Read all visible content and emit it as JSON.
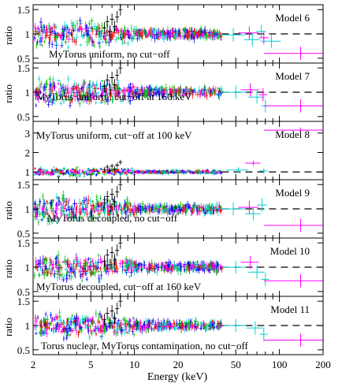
{
  "chart_data": {
    "type": "scatter",
    "xlabel": "Energy (keV)",
    "ylabel": "ratio",
    "x_scale": "log",
    "xlim": [
      2,
      200
    ],
    "x_ticks": [
      2,
      5,
      10,
      20,
      50,
      100,
      200
    ],
    "reference_line": 1,
    "series_colors": [
      "#000000",
      "#ff0000",
      "#00c000",
      "#0000ff",
      "#00d0d0",
      "#ff00ff"
    ],
    "panels": [
      {
        "model": "Model 6",
        "annotation": "MyTorus uniform, no cut−off",
        "ylim": [
          0.4,
          1.6
        ],
        "y_ticks": [
          0.5,
          1,
          1.5
        ],
        "y_tick_labels": [
          "0.5",
          "1",
          "1.5"
        ],
        "show_ylabel": true,
        "high_bins": [
          {
            "x": 48,
            "xe": 10,
            "y": 0.98,
            "c": 4
          },
          {
            "x": 65,
            "xe": 8,
            "y": 0.88,
            "c": 4
          },
          {
            "x": 75,
            "xe": 6,
            "y": 1.05,
            "c": 4
          },
          {
            "x": 88,
            "xe": 14,
            "y": 0.85,
            "c": 4
          },
          {
            "x": 62,
            "xe": 10,
            "y": 1.02,
            "c": 5
          },
          {
            "x": 78,
            "xe": 6,
            "y": 0.92,
            "c": 5
          },
          {
            "x": 140,
            "xe": 62,
            "y": 0.6,
            "c": 5
          }
        ]
      },
      {
        "model": "Model 7",
        "annotation": "MyTorus uniform, cut−off at 160 keV",
        "ylim": [
          0.4,
          1.6
        ],
        "y_ticks": [
          0.5,
          1,
          1.5
        ],
        "y_tick_labels": [
          "0.5",
          "1",
          "1.5"
        ],
        "show_ylabel": true,
        "high_bins": [
          {
            "x": 50,
            "xe": 9,
            "y": 1.0,
            "c": 4
          },
          {
            "x": 70,
            "xe": 9,
            "y": 0.9,
            "c": 4
          },
          {
            "x": 80,
            "xe": 5,
            "y": 0.72,
            "c": 4
          },
          {
            "x": 63,
            "xe": 9,
            "y": 1.05,
            "c": 5
          },
          {
            "x": 77,
            "xe": 5,
            "y": 0.95,
            "c": 5
          },
          {
            "x": 140,
            "xe": 62,
            "y": 0.72,
            "c": 5
          }
        ]
      },
      {
        "model": "Model 8",
        "annotation": "MyTorus uniform, cut−off at 100 keV",
        "ylim": [
          0.6,
          3.6
        ],
        "y_ticks": [
          1,
          2,
          3
        ],
        "y_tick_labels": [
          "1",
          "2",
          "3"
        ],
        "show_ylabel": false,
        "high_bins": [
          {
            "x": 52,
            "xe": 9,
            "y": 1.1,
            "c": 4
          },
          {
            "x": 66,
            "xe": 8,
            "y": 1.45,
            "c": 5
          },
          {
            "x": 78,
            "xe": 5,
            "y": 1.05,
            "c": 4
          },
          {
            "x": 140,
            "xe": 62,
            "y": 3.15,
            "c": 5
          }
        ]
      },
      {
        "model": "Model 9",
        "annotation": "MyTorus decoupled,  no cut−off",
        "ylim": [
          0.4,
          1.6
        ],
        "y_ticks": [
          0.5,
          1,
          1.5
        ],
        "y_tick_labels": [
          "0.5",
          "1",
          "1.5"
        ],
        "show_ylabel": true,
        "high_bins": [
          {
            "x": 48,
            "xe": 10,
            "y": 1.0,
            "c": 4
          },
          {
            "x": 66,
            "xe": 8,
            "y": 0.9,
            "c": 4
          },
          {
            "x": 76,
            "xe": 6,
            "y": 1.08,
            "c": 4
          },
          {
            "x": 62,
            "xe": 10,
            "y": 1.03,
            "c": 5
          },
          {
            "x": 140,
            "xe": 62,
            "y": 0.66,
            "c": 5
          }
        ]
      },
      {
        "model": "Model 10",
        "annotation": "MyTorus decoupled, cut−off at 160 keV",
        "ylim": [
          0.4,
          1.6
        ],
        "y_ticks": [
          0.5,
          1,
          1.5
        ],
        "y_tick_labels": [
          "0.5",
          "1",
          "1.5"
        ],
        "show_ylabel": true,
        "high_bins": [
          {
            "x": 50,
            "xe": 9,
            "y": 1.0,
            "c": 4
          },
          {
            "x": 70,
            "xe": 9,
            "y": 0.9,
            "c": 4
          },
          {
            "x": 80,
            "xe": 5,
            "y": 0.75,
            "c": 4
          },
          {
            "x": 63,
            "xe": 9,
            "y": 1.1,
            "c": 5
          },
          {
            "x": 140,
            "xe": 62,
            "y": 0.72,
            "c": 5
          }
        ]
      },
      {
        "model": "Model 11",
        "annotation": "Torus nuclear, MyTorus contamination, no cut−off",
        "ylim": [
          0.4,
          1.6
        ],
        "y_ticks": [
          0.5,
          1,
          1.5
        ],
        "y_tick_labels": [
          "0.5",
          "1",
          "1.5"
        ],
        "show_ylabel": true,
        "high_bins": [
          {
            "x": 50,
            "xe": 9,
            "y": 1.0,
            "c": 4
          },
          {
            "x": 68,
            "xe": 9,
            "y": 0.95,
            "c": 4
          },
          {
            "x": 78,
            "xe": 5,
            "y": 0.82,
            "c": 4
          },
          {
            "x": 140,
            "xe": 62,
            "y": 0.7,
            "c": 5
          }
        ]
      }
    ]
  }
}
